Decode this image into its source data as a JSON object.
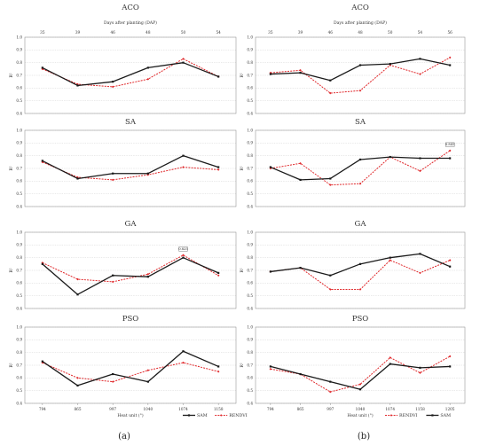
{
  "panel_labels": [
    "(a)",
    "(b)"
  ],
  "top_axis_label": "Days after planting (DAP)",
  "chart_data": [
    {
      "type": "line",
      "column": 0,
      "row": 0,
      "title": "ACO",
      "top_label": "Days after planting (DAP)",
      "top_ticks": [
        "35",
        "39",
        "46",
        "48",
        "50",
        "54"
      ],
      "ylabel": "R²",
      "ylim": [
        0.4,
        1.0
      ],
      "yticks": [
        "0.4",
        "0.5",
        "0.6",
        "0.7",
        "0.8",
        "0.9",
        "1.0"
      ],
      "series": [
        {
          "name": "SAM",
          "color": "#1a1a1a",
          "values": [
            0.76,
            0.62,
            0.65,
            0.76,
            0.8,
            0.69
          ]
        },
        {
          "name": "RENDVI",
          "color": "#e0282b",
          "values": [
            0.75,
            0.63,
            0.61,
            0.67,
            0.83,
            0.69
          ]
        }
      ]
    },
    {
      "type": "line",
      "column": 0,
      "row": 1,
      "title": "SA",
      "ylabel": "R²",
      "ylim": [
        0.4,
        1.0
      ],
      "yticks": [
        "0.4",
        "0.5",
        "0.6",
        "0.7",
        "0.8",
        "0.9",
        "1.0"
      ],
      "series": [
        {
          "name": "SAM",
          "color": "#1a1a1a",
          "values": [
            0.76,
            0.62,
            0.66,
            0.66,
            0.8,
            0.71
          ]
        },
        {
          "name": "RENDVI",
          "color": "#e0282b",
          "values": [
            0.75,
            0.63,
            0.61,
            0.65,
            0.71,
            0.69
          ]
        }
      ]
    },
    {
      "type": "line",
      "column": 0,
      "row": 2,
      "title": "GA",
      "annotation": "0.825",
      "annotation_point": 4,
      "ylabel": "R²",
      "ylim": [
        0.4,
        1.0
      ],
      "yticks": [
        "0.4",
        "0.5",
        "0.6",
        "0.7",
        "0.8",
        "0.9",
        "1.0"
      ],
      "series": [
        {
          "name": "SAM",
          "color": "#1a1a1a",
          "values": [
            0.75,
            0.51,
            0.66,
            0.65,
            0.8,
            0.68
          ]
        },
        {
          "name": "RENDVI",
          "color": "#e0282b",
          "values": [
            0.76,
            0.63,
            0.61,
            0.67,
            0.82,
            0.66
          ]
        }
      ]
    },
    {
      "type": "line",
      "column": 0,
      "row": 3,
      "title": "PSO",
      "ylabel": "R²",
      "ylim": [
        0.4,
        1.0
      ],
      "yticks": [
        "0.4",
        "0.5",
        "0.6",
        "0.7",
        "0.8",
        "0.9",
        "1.0"
      ],
      "xlabel": "Heat unit (°)",
      "xticks": [
        "794",
        "865",
        "997",
        "1040",
        "1074",
        "1158"
      ],
      "series": [
        {
          "name": "SAM",
          "color": "#1a1a1a",
          "values": [
            0.73,
            0.54,
            0.63,
            0.57,
            0.81,
            0.69
          ]
        },
        {
          "name": "RENDVI",
          "color": "#e0282b",
          "values": [
            0.72,
            0.6,
            0.57,
            0.66,
            0.72,
            0.65
          ]
        }
      ],
      "legend": [
        {
          "name": "SAM",
          "color": "#1a1a1a",
          "dash": false
        },
        {
          "name": "RENDVI",
          "color": "#e0282b",
          "dash": true
        }
      ]
    },
    {
      "type": "line",
      "column": 1,
      "row": 0,
      "title": "ACO",
      "top_label": "Days after planting (DAP)",
      "top_ticks": [
        "35",
        "39",
        "46",
        "48",
        "50",
        "54",
        "56"
      ],
      "ylabel": "R²",
      "ylim": [
        0.4,
        1.0
      ],
      "yticks": [
        "0.4",
        "0.5",
        "0.6",
        "0.7",
        "0.8",
        "0.9",
        "1.0"
      ],
      "series": [
        {
          "name": "SAM",
          "color": "#1a1a1a",
          "values": [
            0.71,
            0.72,
            0.66,
            0.78,
            0.79,
            0.83,
            0.78
          ]
        },
        {
          "name": "RENDVI",
          "color": "#e0282b",
          "values": [
            0.72,
            0.74,
            0.56,
            0.58,
            0.78,
            0.71,
            0.84
          ]
        }
      ]
    },
    {
      "type": "line",
      "column": 1,
      "row": 1,
      "title": "SA",
      "annotation": "0.841",
      "annotation_point": 6,
      "ylabel": "R²",
      "ylim": [
        0.4,
        1.0
      ],
      "yticks": [
        "0.4",
        "0.5",
        "0.6",
        "0.7",
        "0.8",
        "0.9",
        "1.0"
      ],
      "series": [
        {
          "name": "SAM",
          "color": "#1a1a1a",
          "values": [
            0.71,
            0.61,
            0.62,
            0.77,
            0.79,
            0.78,
            0.78
          ]
        },
        {
          "name": "RENDVI",
          "color": "#e0282b",
          "values": [
            0.7,
            0.74,
            0.57,
            0.58,
            0.79,
            0.68,
            0.84
          ]
        }
      ]
    },
    {
      "type": "line",
      "column": 1,
      "row": 2,
      "title": "GA",
      "ylabel": "R²",
      "ylim": [
        0.4,
        1.0
      ],
      "yticks": [
        "0.4",
        "0.5",
        "0.6",
        "0.7",
        "0.8",
        "0.9",
        "1.0"
      ],
      "series": [
        {
          "name": "SAM",
          "color": "#1a1a1a",
          "values": [
            0.69,
            0.72,
            0.66,
            0.75,
            0.8,
            0.83,
            0.73
          ]
        },
        {
          "name": "RENDVI",
          "color": "#e0282b",
          "values": [
            0.69,
            0.72,
            0.55,
            0.55,
            0.78,
            0.68,
            0.78
          ]
        }
      ]
    },
    {
      "type": "line",
      "column": 1,
      "row": 3,
      "title": "PSO",
      "ylabel": "R²",
      "ylim": [
        0.4,
        1.0
      ],
      "yticks": [
        "0.4",
        "0.5",
        "0.6",
        "0.7",
        "0.8",
        "0.9",
        "1.0"
      ],
      "xlabel": "Heat unit (°)",
      "xticks": [
        "794",
        "865",
        "997",
        "1040",
        "1074",
        "1158",
        "1205"
      ],
      "series": [
        {
          "name": "SAM",
          "color": "#1a1a1a",
          "values": [
            0.69,
            0.63,
            0.57,
            0.51,
            0.71,
            0.68,
            0.69
          ]
        },
        {
          "name": "RENDVI",
          "color": "#e0282b",
          "values": [
            0.67,
            0.63,
            0.49,
            0.55,
            0.76,
            0.64,
            0.77
          ]
        }
      ],
      "legend": [
        {
          "name": "RENDVI",
          "color": "#e0282b",
          "dash": true
        },
        {
          "name": "SAM",
          "color": "#1a1a1a",
          "dash": false
        }
      ]
    }
  ]
}
